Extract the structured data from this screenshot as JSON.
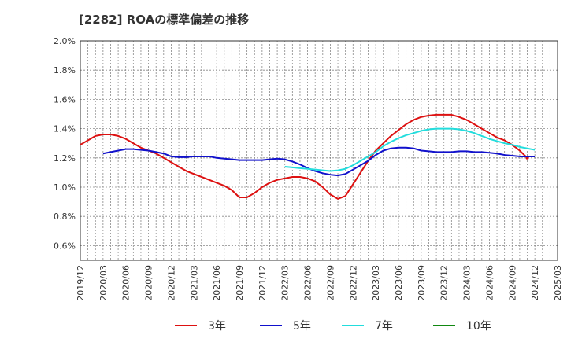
{
  "chart_data": {
    "type": "line",
    "title": "[2282]  ROAの標準偏差の推移",
    "ylim": [
      0.5,
      2.0
    ],
    "yticks": [
      {
        "value": 0.6,
        "label": "0.6%"
      },
      {
        "value": 0.8,
        "label": "0.8%"
      },
      {
        "value": 1.0,
        "label": "1.0%"
      },
      {
        "value": 1.2,
        "label": "1.2%"
      },
      {
        "value": 1.4,
        "label": "1.4%"
      },
      {
        "value": 1.6,
        "label": "1.6%"
      },
      {
        "value": 1.8,
        "label": "1.8%"
      },
      {
        "value": 2.0,
        "label": "2.0%"
      }
    ],
    "xrange": [
      "2019/12",
      "2025/03"
    ],
    "xticks": [
      "2019/12",
      "2020/03",
      "2020/06",
      "2020/09",
      "2020/12",
      "2021/03",
      "2021/06",
      "2021/09",
      "2021/12",
      "2022/03",
      "2022/06",
      "2022/09",
      "2022/12",
      "2023/03",
      "2023/06",
      "2023/09",
      "2023/12",
      "2024/03",
      "2024/06",
      "2024/09",
      "2024/12",
      "2025/03"
    ],
    "grid": true,
    "legend_position": "bottom",
    "series": [
      {
        "name": "3年",
        "color": "#dd1111",
        "points": [
          [
            "2019/12",
            1.29
          ],
          [
            "2020/01",
            1.32
          ],
          [
            "2020/02",
            1.35
          ],
          [
            "2020/03",
            1.36
          ],
          [
            "2020/04",
            1.36
          ],
          [
            "2020/05",
            1.35
          ],
          [
            "2020/06",
            1.33
          ],
          [
            "2020/07",
            1.3
          ],
          [
            "2020/08",
            1.27
          ],
          [
            "2020/09",
            1.25
          ],
          [
            "2020/10",
            1.23
          ],
          [
            "2020/11",
            1.2
          ],
          [
            "2020/12",
            1.17
          ],
          [
            "2021/01",
            1.14
          ],
          [
            "2021/02",
            1.11
          ],
          [
            "2021/03",
            1.09
          ],
          [
            "2021/04",
            1.07
          ],
          [
            "2021/05",
            1.05
          ],
          [
            "2021/06",
            1.03
          ],
          [
            "2021/07",
            1.01
          ],
          [
            "2021/08",
            0.98
          ],
          [
            "2021/09",
            0.93
          ],
          [
            "2021/10",
            0.93
          ],
          [
            "2021/11",
            0.96
          ],
          [
            "2021/12",
            1.0
          ],
          [
            "2022/01",
            1.03
          ],
          [
            "2022/02",
            1.05
          ],
          [
            "2022/03",
            1.06
          ],
          [
            "2022/04",
            1.07
          ],
          [
            "2022/05",
            1.07
          ],
          [
            "2022/06",
            1.06
          ],
          [
            "2022/07",
            1.04
          ],
          [
            "2022/08",
            1.0
          ],
          [
            "2022/09",
            0.95
          ],
          [
            "2022/10",
            0.92
          ],
          [
            "2022/11",
            0.94
          ],
          [
            "2022/12",
            1.02
          ],
          [
            "2023/01",
            1.1
          ],
          [
            "2023/02",
            1.18
          ],
          [
            "2023/03",
            1.25
          ],
          [
            "2023/04",
            1.3
          ],
          [
            "2023/05",
            1.35
          ],
          [
            "2023/06",
            1.39
          ],
          [
            "2023/07",
            1.43
          ],
          [
            "2023/08",
            1.46
          ],
          [
            "2023/09",
            1.48
          ],
          [
            "2023/10",
            1.49
          ],
          [
            "2023/11",
            1.495
          ],
          [
            "2023/12",
            1.495
          ],
          [
            "2024/01",
            1.495
          ],
          [
            "2024/02",
            1.48
          ],
          [
            "2024/03",
            1.46
          ],
          [
            "2024/04",
            1.43
          ],
          [
            "2024/05",
            1.4
          ],
          [
            "2024/06",
            1.37
          ],
          [
            "2024/07",
            1.34
          ],
          [
            "2024/08",
            1.32
          ],
          [
            "2024/09",
            1.29
          ],
          [
            "2024/10",
            1.25
          ],
          [
            "2024/11",
            1.2
          ]
        ]
      },
      {
        "name": "5年",
        "color": "#1111cc",
        "points": [
          [
            "2020/03",
            1.23
          ],
          [
            "2020/04",
            1.24
          ],
          [
            "2020/05",
            1.25
          ],
          [
            "2020/06",
            1.26
          ],
          [
            "2020/07",
            1.26
          ],
          [
            "2020/08",
            1.255
          ],
          [
            "2020/09",
            1.25
          ],
          [
            "2020/10",
            1.24
          ],
          [
            "2020/11",
            1.23
          ],
          [
            "2020/12",
            1.21
          ],
          [
            "2021/01",
            1.205
          ],
          [
            "2021/02",
            1.205
          ],
          [
            "2021/03",
            1.21
          ],
          [
            "2021/04",
            1.21
          ],
          [
            "2021/05",
            1.21
          ],
          [
            "2021/06",
            1.2
          ],
          [
            "2021/07",
            1.195
          ],
          [
            "2021/08",
            1.19
          ],
          [
            "2021/09",
            1.185
          ],
          [
            "2021/10",
            1.185
          ],
          [
            "2021/11",
            1.185
          ],
          [
            "2021/12",
            1.185
          ],
          [
            "2022/01",
            1.19
          ],
          [
            "2022/02",
            1.195
          ],
          [
            "2022/03",
            1.19
          ],
          [
            "2022/04",
            1.175
          ],
          [
            "2022/05",
            1.155
          ],
          [
            "2022/06",
            1.13
          ],
          [
            "2022/07",
            1.11
          ],
          [
            "2022/08",
            1.095
          ],
          [
            "2022/09",
            1.085
          ],
          [
            "2022/10",
            1.08
          ],
          [
            "2022/11",
            1.09
          ],
          [
            "2022/12",
            1.12
          ],
          [
            "2023/01",
            1.15
          ],
          [
            "2023/02",
            1.18
          ],
          [
            "2023/03",
            1.22
          ],
          [
            "2023/04",
            1.25
          ],
          [
            "2023/05",
            1.265
          ],
          [
            "2023/06",
            1.27
          ],
          [
            "2023/07",
            1.27
          ],
          [
            "2023/08",
            1.265
          ],
          [
            "2023/09",
            1.25
          ],
          [
            "2023/10",
            1.245
          ],
          [
            "2023/11",
            1.24
          ],
          [
            "2023/12",
            1.24
          ],
          [
            "2024/01",
            1.24
          ],
          [
            "2024/02",
            1.245
          ],
          [
            "2024/03",
            1.245
          ],
          [
            "2024/04",
            1.24
          ],
          [
            "2024/05",
            1.24
          ],
          [
            "2024/06",
            1.235
          ],
          [
            "2024/07",
            1.23
          ],
          [
            "2024/08",
            1.22
          ],
          [
            "2024/09",
            1.215
          ],
          [
            "2024/10",
            1.21
          ],
          [
            "2024/11",
            1.21
          ],
          [
            "2024/12",
            1.21
          ]
        ]
      },
      {
        "name": "7年",
        "color": "#22dddd",
        "points": [
          [
            "2022/03",
            1.14
          ],
          [
            "2022/04",
            1.135
          ],
          [
            "2022/05",
            1.13
          ],
          [
            "2022/06",
            1.125
          ],
          [
            "2022/07",
            1.12
          ],
          [
            "2022/08",
            1.115
          ],
          [
            "2022/09",
            1.11
          ],
          [
            "2022/10",
            1.115
          ],
          [
            "2022/11",
            1.125
          ],
          [
            "2022/12",
            1.15
          ],
          [
            "2023/01",
            1.18
          ],
          [
            "2023/02",
            1.21
          ],
          [
            "2023/03",
            1.24
          ],
          [
            "2023/04",
            1.28
          ],
          [
            "2023/05",
            1.31
          ],
          [
            "2023/06",
            1.335
          ],
          [
            "2023/07",
            1.355
          ],
          [
            "2023/08",
            1.37
          ],
          [
            "2023/09",
            1.385
          ],
          [
            "2023/10",
            1.395
          ],
          [
            "2023/11",
            1.4
          ],
          [
            "2023/12",
            1.4
          ],
          [
            "2024/01",
            1.4
          ],
          [
            "2024/02",
            1.395
          ],
          [
            "2024/03",
            1.385
          ],
          [
            "2024/04",
            1.37
          ],
          [
            "2024/05",
            1.35
          ],
          [
            "2024/06",
            1.33
          ],
          [
            "2024/07",
            1.315
          ],
          [
            "2024/08",
            1.3
          ],
          [
            "2024/09",
            1.29
          ],
          [
            "2024/10",
            1.275
          ],
          [
            "2024/11",
            1.265
          ],
          [
            "2024/12",
            1.255
          ]
        ]
      },
      {
        "name": "10年",
        "color": "#118811",
        "points": []
      }
    ]
  }
}
